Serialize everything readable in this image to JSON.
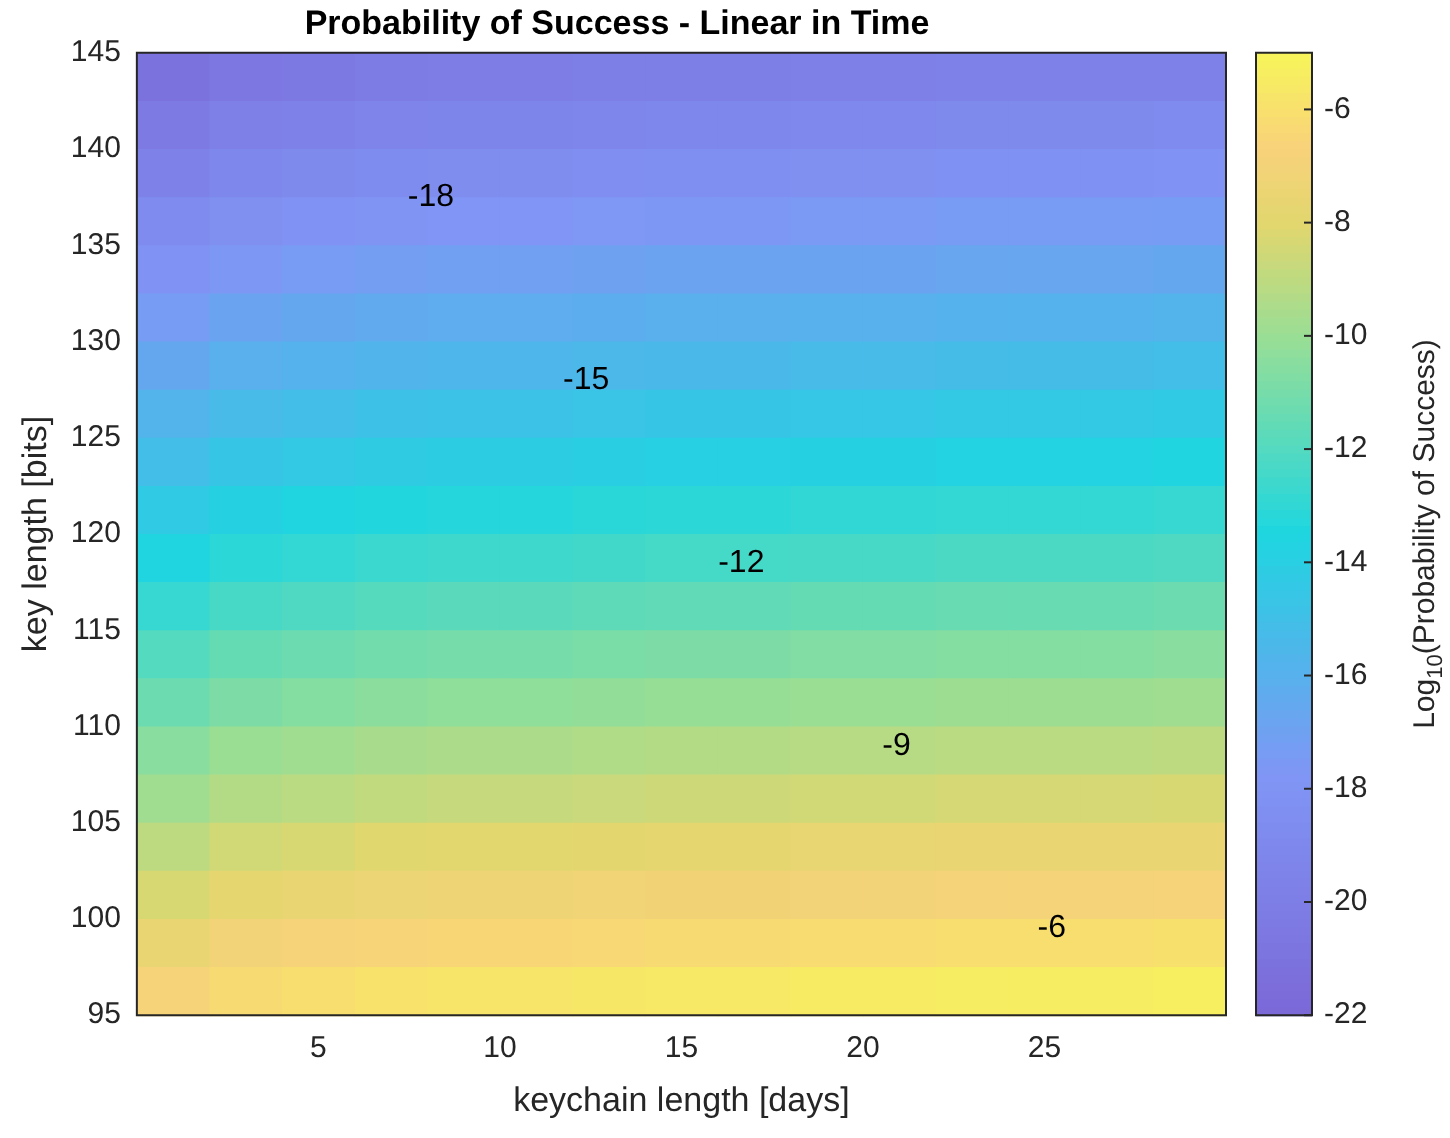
{
  "chart_data": {
    "type": "heatmap",
    "title": "Probability of Success - Linear in Time",
    "xlabel": "keychain length [days]",
    "ylabel": "key length [bits]",
    "clabel": "Log$_{10}$(Probability of Success)",
    "x": [
      1,
      3,
      5,
      7,
      9,
      11,
      13,
      15,
      17,
      19,
      21,
      23,
      25,
      27,
      29
    ],
    "xlim": [
      0,
      30
    ],
    "xticks": [
      5,
      10,
      15,
      20,
      25
    ],
    "ylim": [
      95,
      145
    ],
    "yticks": [
      95,
      100,
      105,
      110,
      115,
      120,
      125,
      130,
      135,
      140,
      145
    ],
    "clim": [
      -22,
      -5
    ],
    "cticks": [
      -22,
      -20,
      -18,
      -16,
      -14,
      -12,
      -10,
      -8,
      -6
    ],
    "cells": [
      [
        -21.1,
        -20.6,
        -20.4,
        -20.2,
        -20.1,
        -20.1,
        -20.0,
        -19.9,
        -19.9,
        -19.8,
        -19.8,
        -19.7,
        -19.7,
        -19.7,
        -19.6
      ],
      [
        -20.3,
        -19.8,
        -19.6,
        -19.4,
        -19.3,
        -19.3,
        -19.2,
        -19.1,
        -19.1,
        -19.0,
        -19.0,
        -18.9,
        -18.9,
        -18.9,
        -18.8
      ],
      [
        -19.6,
        -19.1,
        -18.9,
        -18.7,
        -18.6,
        -18.6,
        -18.5,
        -18.4,
        -18.4,
        -18.3,
        -18.3,
        -18.2,
        -18.2,
        -18.2,
        -18.1
      ],
      [
        -18.8,
        -18.3,
        -18.1,
        -17.9,
        -17.8,
        -17.8,
        -17.7,
        -17.6,
        -17.6,
        -17.5,
        -17.5,
        -17.4,
        -17.4,
        -17.4,
        -17.3
      ],
      [
        -18.1,
        -17.6,
        -17.4,
        -17.2,
        -17.1,
        -17.1,
        -17.0,
        -16.9,
        -16.9,
        -16.8,
        -16.8,
        -16.7,
        -16.7,
        -16.7,
        -16.6
      ],
      [
        -17.3,
        -16.8,
        -16.6,
        -16.4,
        -16.3,
        -16.3,
        -16.2,
        -16.1,
        -16.1,
        -16.0,
        -16.0,
        -15.9,
        -15.9,
        -15.9,
        -15.8
      ],
      [
        -16.6,
        -16.1,
        -15.9,
        -15.7,
        -15.6,
        -15.6,
        -15.5,
        -15.4,
        -15.4,
        -15.3,
        -15.3,
        -15.2,
        -15.2,
        -15.2,
        -15.1
      ],
      [
        -15.8,
        -15.3,
        -15.1,
        -14.9,
        -14.8,
        -14.8,
        -14.7,
        -14.6,
        -14.6,
        -14.5,
        -14.5,
        -14.4,
        -14.4,
        -14.4,
        -14.3
      ],
      [
        -15.1,
        -14.6,
        -14.4,
        -14.2,
        -14.1,
        -14.1,
        -14.0,
        -13.9,
        -13.9,
        -13.8,
        -13.8,
        -13.7,
        -13.7,
        -13.7,
        -13.6
      ],
      [
        -14.3,
        -13.8,
        -13.6,
        -13.4,
        -13.3,
        -13.3,
        -13.2,
        -13.1,
        -13.1,
        -13.0,
        -13.0,
        -12.9,
        -12.9,
        -12.9,
        -12.8
      ],
      [
        -13.6,
        -13.1,
        -12.9,
        -12.7,
        -12.6,
        -12.6,
        -12.5,
        -12.4,
        -12.4,
        -12.3,
        -12.3,
        -12.2,
        -12.2,
        -12.2,
        -12.1
      ],
      [
        -12.8,
        -12.3,
        -12.1,
        -11.9,
        -11.8,
        -11.8,
        -11.7,
        -11.6,
        -11.6,
        -11.5,
        -11.5,
        -11.4,
        -11.4,
        -11.4,
        -11.3
      ],
      [
        -12.0,
        -11.5,
        -11.3,
        -11.1,
        -11.0,
        -11.0,
        -10.9,
        -10.8,
        -10.8,
        -10.7,
        -10.7,
        -10.6,
        -10.6,
        -10.6,
        -10.5
      ],
      [
        -11.3,
        -10.8,
        -10.6,
        -10.4,
        -10.3,
        -10.3,
        -10.2,
        -10.1,
        -10.1,
        -10.0,
        -10.0,
        -9.9,
        -9.9,
        -9.9,
        -9.8
      ],
      [
        -10.5,
        -10.0,
        -9.8,
        -9.6,
        -9.5,
        -9.5,
        -9.4,
        -9.3,
        -9.3,
        -9.2,
        -9.2,
        -9.1,
        -9.1,
        -9.1,
        -9.0
      ],
      [
        -9.8,
        -9.3,
        -9.1,
        -8.9,
        -8.8,
        -8.8,
        -8.7,
        -8.6,
        -8.6,
        -8.5,
        -8.5,
        -8.4,
        -8.4,
        -8.4,
        -8.3
      ],
      [
        -9.0,
        -8.5,
        -8.3,
        -8.1,
        -8.0,
        -8.0,
        -7.9,
        -7.8,
        -7.8,
        -7.7,
        -7.7,
        -7.6,
        -7.6,
        -7.6,
        -7.5
      ],
      [
        -8.3,
        -7.8,
        -7.6,
        -7.4,
        -7.3,
        -7.3,
        -7.2,
        -7.1,
        -7.1,
        -7.0,
        -7.0,
        -6.9,
        -6.9,
        -6.9,
        -6.8
      ],
      [
        -7.5,
        -7.0,
        -6.8,
        -6.6,
        -6.5,
        -6.5,
        -6.4,
        -6.3,
        -6.3,
        -6.2,
        -6.2,
        -6.1,
        -6.1,
        -6.1,
        -6.0
      ],
      [
        -6.8,
        -6.3,
        -6.1,
        -5.9,
        -5.8,
        -5.8,
        -5.7,
        -5.6,
        -5.6,
        -5.5,
        -5.5,
        -5.4,
        -5.4,
        -5.4,
        -5.3
      ]
    ],
    "annotations": [
      "-18",
      "-15",
      "-12",
      "-9",
      "-6"
    ]
  }
}
